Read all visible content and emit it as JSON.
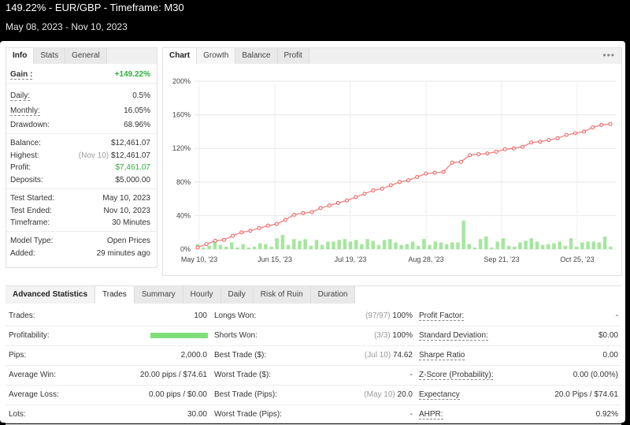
{
  "header": {
    "title": "149.22% - EUR/GBP - Timeframe: M30",
    "date_range": "May 08, 2023 - Nov 10, 2023"
  },
  "info_panel": {
    "tabs": [
      "Info",
      "Stats",
      "General"
    ],
    "gain_label": "Gain :",
    "gain_value": "+149.22%",
    "daily_label": "Daily:",
    "daily_value": "0.5%",
    "monthly_label": "Monthly:",
    "monthly_value": "16.05%",
    "drawdown_label": "Drawdown:",
    "drawdown_value": "68.96%",
    "balance_label": "Balance:",
    "balance_value": "$12,461.07",
    "highest_label": "Highest:",
    "highest_date": "(Nov 10)",
    "highest_value": "$12,461.07",
    "profit_label": "Profit:",
    "profit_value": "$7,461.07",
    "deposits_label": "Deposits:",
    "deposits_value": "$5,000.00",
    "test_started_label": "Test Started:",
    "test_started_value": "May 10, 2023",
    "test_ended_label": "Test Ended:",
    "test_ended_value": "Nov 10, 2023",
    "timeframe_label": "Timeframe:",
    "timeframe_value": "30 Minutes",
    "model_type_label": "Model Type:",
    "model_type_value": "Open Prices",
    "added_label": "Added:",
    "added_value": "29 minutes ago"
  },
  "chart_panel": {
    "tabs": [
      "Chart",
      "Growth",
      "Balance",
      "Profit"
    ],
    "menu_glyph": "•••"
  },
  "chart_data": {
    "type": "line",
    "x_ticks": [
      "May 10, '23",
      "Jun 15, '23",
      "Jul 19, '23",
      "Aug 28, '23",
      "Sep 21, '23",
      "Oct 25, '23"
    ],
    "y_ticks": [
      "0%",
      "40%",
      "80%",
      "120%",
      "160%",
      "200%"
    ],
    "ylim": [
      0,
      200
    ],
    "series": [
      {
        "values": [
          2,
          6,
          10,
          11,
          16,
          20,
          22,
          25,
          28,
          30,
          35,
          41,
          43,
          44,
          49,
          52,
          55,
          58,
          62,
          66,
          70,
          72,
          76,
          80,
          82,
          86,
          90,
          91,
          92,
          103,
          104,
          112,
          113,
          114,
          116,
          119,
          120,
          122,
          127,
          128,
          130,
          132,
          136,
          138,
          140,
          145,
          148,
          149
        ]
      },
      {
        "type": "bar",
        "values": [
          6,
          2,
          4,
          10,
          5,
          3,
          8,
          2,
          6,
          2,
          3,
          7,
          6,
          3,
          13,
          17,
          5,
          12,
          10,
          12,
          4,
          11,
          5,
          9,
          9,
          11,
          12,
          9,
          11,
          6,
          12,
          10,
          5,
          11,
          12,
          8,
          5,
          6,
          9,
          4,
          12,
          5,
          9,
          8,
          6,
          8,
          8,
          34,
          6,
          2,
          12,
          15,
          2,
          9,
          13,
          4,
          3,
          8,
          10,
          13,
          9,
          5,
          6,
          7,
          9,
          4,
          13,
          3,
          8,
          9,
          9,
          8,
          15,
          3
        ]
      }
    ]
  },
  "stats_panel": {
    "tabs": [
      "Advanced Statistics",
      "Trades",
      "Summary",
      "Hourly",
      "Daily",
      "Risk of Ruin",
      "Duration"
    ],
    "rows": [
      {
        "l1": "Trades:",
        "v1": "100",
        "l2": "Longs Won:",
        "g2": "(97/97)",
        "v2": "100%",
        "l3": "Profit Factor:",
        "v3": "-"
      },
      {
        "l1": "Profitability:",
        "v1": "",
        "l2": "Shorts Won:",
        "g2": "(3/3)",
        "v2": "100%",
        "l3": "Standard Deviation:",
        "v3": "$0.00"
      },
      {
        "l1": "Pips:",
        "v1": "2,000.0",
        "l2": "Best Trade ($):",
        "g2": "(Jul 10)",
        "v2": "74.62",
        "l3": "Sharpe Ratio",
        "v3": "0.00"
      },
      {
        "l1": "Average Win:",
        "v1": "20.00 pips / $74.61",
        "l2": "Worst Trade ($):",
        "g2": "",
        "v2": "-",
        "l3": "Z-Score (Probability):",
        "v3": "0.00 (0.00%)"
      },
      {
        "l1": "Average Loss:",
        "v1": "0.00 pips / $0.00",
        "l2": "Best Trade (Pips):",
        "g2": "(May 10)",
        "v2": "20.0",
        "l3": "Expectancy",
        "v3": "20.0 Pips / $74.61"
      },
      {
        "l1": "Lots:",
        "v1": "30.00",
        "l2": "Worst Trade (Pips):",
        "g2": "",
        "v2": "-",
        "l3": "AHPR:",
        "v3": "0.92%"
      }
    ],
    "profitability_fill": 1.0
  }
}
